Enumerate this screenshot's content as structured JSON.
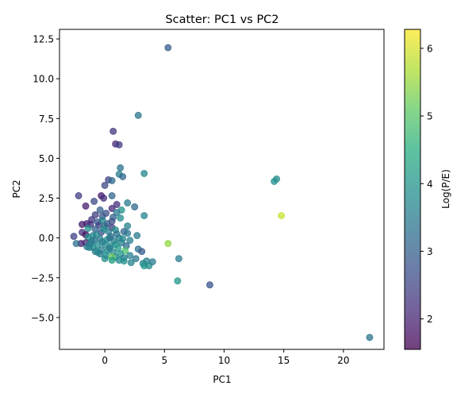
{
  "chart_data": {
    "type": "scatter",
    "title": "Scatter: PC1 vs PC2",
    "xlabel": "PC1",
    "ylabel": "PC2",
    "xlim": [
      -3.8,
      23.4
    ],
    "ylim": [
      -7.0,
      13.1
    ],
    "xticks": [
      0,
      5,
      10,
      15,
      20
    ],
    "yticks": [
      -5.0,
      -2.5,
      0.0,
      2.5,
      5.0,
      7.5,
      10.0,
      12.5
    ],
    "ytick_labels": [
      "−5.0",
      "−2.5",
      "0.0",
      "2.5",
      "5.0",
      "7.5",
      "10.0",
      "12.5"
    ],
    "xtick_labels": [
      "0",
      "5",
      "10",
      "15",
      "20"
    ],
    "grid": false,
    "colorbar": {
      "label": "Log(P/E)",
      "range": [
        1.55,
        6.28
      ],
      "ticks": [
        2,
        3,
        4,
        5,
        6
      ],
      "colormap": "viridis",
      "alpha": 0.75
    },
    "points": [
      {
        "x": 5.3,
        "y": 11.95,
        "c": 2.9
      },
      {
        "x": 2.8,
        "y": 7.7,
        "c": 3.4
      },
      {
        "x": 0.7,
        "y": 6.7,
        "c": 2.3
      },
      {
        "x": 0.9,
        "y": 5.9,
        "c": 2.1
      },
      {
        "x": 1.2,
        "y": 5.85,
        "c": 2.4
      },
      {
        "x": 1.3,
        "y": 4.4,
        "c": 3.3
      },
      {
        "x": 1.2,
        "y": 4.0,
        "c": 3.6
      },
      {
        "x": 3.3,
        "y": 4.05,
        "c": 3.7
      },
      {
        "x": 1.5,
        "y": 3.85,
        "c": 3.1
      },
      {
        "x": 0.3,
        "y": 3.65,
        "c": 2.5
      },
      {
        "x": 0.6,
        "y": 3.6,
        "c": 3.2
      },
      {
        "x": 14.4,
        "y": 3.7,
        "c": 3.8
      },
      {
        "x": 14.2,
        "y": 3.55,
        "c": 3.9
      },
      {
        "x": 0.0,
        "y": 3.3,
        "c": 2.6
      },
      {
        "x": -2.2,
        "y": 2.65,
        "c": 2.4
      },
      {
        "x": -0.3,
        "y": 2.65,
        "c": 1.9
      },
      {
        "x": 0.6,
        "y": 2.65,
        "c": 3.1
      },
      {
        "x": -0.1,
        "y": 2.5,
        "c": 2.2
      },
      {
        "x": -0.9,
        "y": 2.3,
        "c": 2.6
      },
      {
        "x": 1.9,
        "y": 2.2,
        "c": 3.5
      },
      {
        "x": 1.0,
        "y": 2.1,
        "c": 2.2
      },
      {
        "x": -1.6,
        "y": 2.0,
        "c": 2.0
      },
      {
        "x": 2.5,
        "y": 1.95,
        "c": 3.2
      },
      {
        "x": 0.6,
        "y": 1.85,
        "c": 2.1
      },
      {
        "x": 1.4,
        "y": 1.75,
        "c": 3.9
      },
      {
        "x": -0.4,
        "y": 1.75,
        "c": 3.0
      },
      {
        "x": 1.0,
        "y": 1.6,
        "c": 3.5
      },
      {
        "x": 0.1,
        "y": 1.55,
        "c": 2.7
      },
      {
        "x": -0.2,
        "y": 1.35,
        "c": 2.8
      },
      {
        "x": 3.3,
        "y": 1.4,
        "c": 3.7
      },
      {
        "x": 14.8,
        "y": 1.4,
        "c": 5.9
      },
      {
        "x": 1.3,
        "y": 1.25,
        "c": 3.8
      },
      {
        "x": -1.1,
        "y": 1.15,
        "c": 2.3
      },
      {
        "x": 0.6,
        "y": 1.05,
        "c": 2.6
      },
      {
        "x": -0.6,
        "y": 1.0,
        "c": 2.9
      },
      {
        "x": -1.5,
        "y": 0.9,
        "c": 2.0
      },
      {
        "x": -1.9,
        "y": 0.85,
        "c": 1.9
      },
      {
        "x": -1.2,
        "y": 0.85,
        "c": 2.2
      },
      {
        "x": -0.5,
        "y": 0.8,
        "c": 2.5
      },
      {
        "x": 0.0,
        "y": 0.75,
        "c": 3.2
      },
      {
        "x": 1.9,
        "y": 0.75,
        "c": 3.6
      },
      {
        "x": 0.6,
        "y": 0.65,
        "c": 2.4
      },
      {
        "x": -1.4,
        "y": 0.6,
        "c": 3.8
      },
      {
        "x": -0.8,
        "y": 0.55,
        "c": 3.0
      },
      {
        "x": 0.9,
        "y": 0.5,
        "c": 3.9
      },
      {
        "x": 1.6,
        "y": 0.4,
        "c": 3.1
      },
      {
        "x": 0.3,
        "y": 0.4,
        "c": 3.5
      },
      {
        "x": -1.9,
        "y": 0.35,
        "c": 2.2
      },
      {
        "x": -0.3,
        "y": 0.35,
        "c": 2.7
      },
      {
        "x": 1.9,
        "y": 0.3,
        "c": 3.4
      },
      {
        "x": -1.6,
        "y": 0.2,
        "c": 1.7
      },
      {
        "x": 2.7,
        "y": 0.15,
        "c": 3.5
      },
      {
        "x": -2.6,
        "y": 0.1,
        "c": 2.5
      },
      {
        "x": -1.0,
        "y": 0.15,
        "c": 3.6
      },
      {
        "x": 0.5,
        "y": 0.1,
        "c": 3.3
      },
      {
        "x": -1.4,
        "y": 0.05,
        "c": 3.9
      },
      {
        "x": 1.2,
        "y": 0.0,
        "c": 3.7
      },
      {
        "x": -0.4,
        "y": -0.05,
        "c": 3.4
      },
      {
        "x": 0.2,
        "y": -0.1,
        "c": 3.8
      },
      {
        "x": -0.9,
        "y": -0.15,
        "c": 3.3
      },
      {
        "x": 2.1,
        "y": -0.15,
        "c": 3.6
      },
      {
        "x": 0.8,
        "y": -0.2,
        "c": 3.5
      },
      {
        "x": -1.6,
        "y": -0.3,
        "c": 2.1
      },
      {
        "x": -2.0,
        "y": -0.35,
        "c": 2.0
      },
      {
        "x": -1.2,
        "y": -0.35,
        "c": 3.7
      },
      {
        "x": 1.4,
        "y": -0.3,
        "c": 3.6
      },
      {
        "x": -2.4,
        "y": -0.35,
        "c": 3.3
      },
      {
        "x": 5.3,
        "y": -0.35,
        "c": 5.5
      },
      {
        "x": 0.0,
        "y": -0.4,
        "c": 3.7
      },
      {
        "x": -0.6,
        "y": -0.45,
        "c": 3.8
      },
      {
        "x": 0.5,
        "y": -0.5,
        "c": 3.9
      },
      {
        "x": 1.8,
        "y": -0.5,
        "c": 3.2
      },
      {
        "x": -1.5,
        "y": -0.55,
        "c": 3.4
      },
      {
        "x": -1.0,
        "y": -0.6,
        "c": 3.9
      },
      {
        "x": 1.1,
        "y": -0.65,
        "c": 4.1
      },
      {
        "x": 2.8,
        "y": -0.7,
        "c": 3.3
      },
      {
        "x": -0.3,
        "y": -0.75,
        "c": 3.6
      },
      {
        "x": 1.7,
        "y": -0.8,
        "c": 4.9
      },
      {
        "x": 0.2,
        "y": -0.8,
        "c": 3.8
      },
      {
        "x": 3.1,
        "y": -0.85,
        "c": 2.9
      },
      {
        "x": -0.8,
        "y": -0.85,
        "c": 3.5
      },
      {
        "x": 0.7,
        "y": -0.9,
        "c": 3.7
      },
      {
        "x": 1.3,
        "y": -1.0,
        "c": 4.0
      },
      {
        "x": -0.4,
        "y": -1.0,
        "c": 3.4
      },
      {
        "x": 0.1,
        "y": -1.1,
        "c": 3.9
      },
      {
        "x": 2.1,
        "y": -1.1,
        "c": 3.6
      },
      {
        "x": 0.9,
        "y": -1.2,
        "c": 3.8
      },
      {
        "x": 0.6,
        "y": -1.2,
        "c": 5.2
      },
      {
        "x": 1.6,
        "y": -1.25,
        "c": 3.5
      },
      {
        "x": 2.6,
        "y": -1.3,
        "c": 3.4
      },
      {
        "x": 6.2,
        "y": -1.3,
        "c": 3.5
      },
      {
        "x": 0.6,
        "y": -1.4,
        "c": 4.2
      },
      {
        "x": 1.2,
        "y": -1.4,
        "c": 3.8
      },
      {
        "x": 1.6,
        "y": -1.45,
        "c": 3.9
      },
      {
        "x": 3.5,
        "y": -1.45,
        "c": 3.6
      },
      {
        "x": 4.0,
        "y": -1.5,
        "c": 3.5
      },
      {
        "x": 2.2,
        "y": -1.55,
        "c": 3.6
      },
      {
        "x": 3.2,
        "y": -1.6,
        "c": 3.7
      },
      {
        "x": 3.3,
        "y": -1.75,
        "c": 4.0
      },
      {
        "x": 3.7,
        "y": -1.75,
        "c": 3.8
      },
      {
        "x": 6.1,
        "y": -2.7,
        "c": 4.0
      },
      {
        "x": 8.8,
        "y": -2.95,
        "c": 2.8
      },
      {
        "x": 22.2,
        "y": -6.25,
        "c": 3.4
      },
      {
        "x": -0.2,
        "y": -0.25,
        "c": 3.6
      },
      {
        "x": 0.4,
        "y": 0.0,
        "c": 3.4
      },
      {
        "x": -0.7,
        "y": 0.2,
        "c": 3.7
      },
      {
        "x": 0.9,
        "y": -0.4,
        "c": 3.9
      },
      {
        "x": -1.1,
        "y": -0.2,
        "c": 3.5
      },
      {
        "x": 0.2,
        "y": 0.9,
        "c": 2.9
      },
      {
        "x": -0.1,
        "y": 0.55,
        "c": 3.8
      },
      {
        "x": 1.0,
        "y": 0.25,
        "c": 3.3
      },
      {
        "x": -0.6,
        "y": -0.9,
        "c": 3.7
      },
      {
        "x": 0.4,
        "y": -0.65,
        "c": 3.5
      },
      {
        "x": 1.5,
        "y": -0.05,
        "c": 3.7
      },
      {
        "x": -0.2,
        "y": 1.1,
        "c": 3.6
      },
      {
        "x": 0.7,
        "y": 1.3,
        "c": 3.0
      },
      {
        "x": -0.8,
        "y": 1.45,
        "c": 2.4
      },
      {
        "x": -1.3,
        "y": -0.6,
        "c": 3.6
      },
      {
        "x": 0.0,
        "y": -1.3,
        "c": 3.8
      }
    ]
  }
}
